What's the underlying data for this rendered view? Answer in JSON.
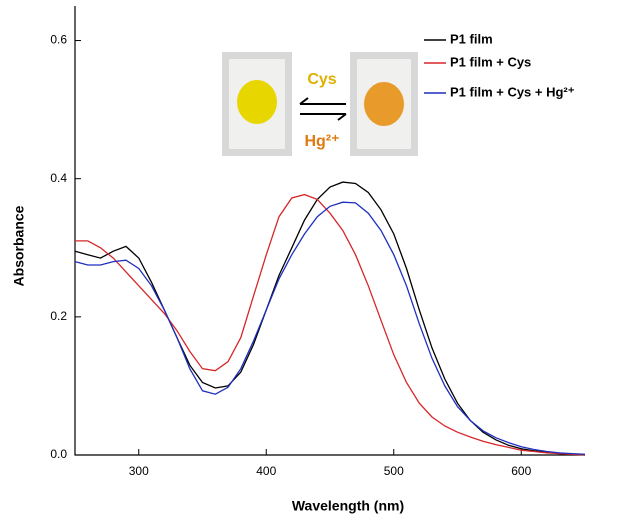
{
  "chart_data": {
    "type": "line",
    "x_label": "Wavelength (nm)",
    "y_label": "Absorbance",
    "x": [
      250,
      260,
      270,
      280,
      290,
      300,
      310,
      320,
      330,
      340,
      350,
      360,
      370,
      380,
      390,
      400,
      410,
      420,
      430,
      440,
      450,
      460,
      470,
      480,
      490,
      500,
      510,
      520,
      530,
      540,
      550,
      560,
      570,
      580,
      590,
      600,
      610,
      620,
      630,
      640,
      650
    ],
    "series": [
      {
        "name": "P1 film",
        "color": "#000000",
        "values": [
          0.295,
          0.29,
          0.285,
          0.295,
          0.302,
          0.285,
          0.25,
          0.21,
          0.17,
          0.13,
          0.105,
          0.097,
          0.1,
          0.12,
          0.16,
          0.21,
          0.26,
          0.3,
          0.34,
          0.37,
          0.388,
          0.395,
          0.393,
          0.38,
          0.355,
          0.32,
          0.27,
          0.21,
          0.155,
          0.11,
          0.075,
          0.05,
          0.033,
          0.022,
          0.014,
          0.009,
          0.006,
          0.004,
          0.002,
          0.001,
          0
        ]
      },
      {
        "name": "P1 film + Cys",
        "color": "#d62728",
        "values": [
          0.31,
          0.31,
          0.3,
          0.285,
          0.265,
          0.245,
          0.225,
          0.205,
          0.18,
          0.15,
          0.125,
          0.122,
          0.135,
          0.17,
          0.23,
          0.29,
          0.345,
          0.372,
          0.377,
          0.37,
          0.35,
          0.325,
          0.29,
          0.245,
          0.195,
          0.145,
          0.105,
          0.075,
          0.055,
          0.042,
          0.033,
          0.026,
          0.02,
          0.015,
          0.011,
          0.007,
          0.005,
          0.003,
          0.002,
          0.001,
          0
        ]
      },
      {
        "name": "P1 film + Cys + Hg²⁺",
        "color": "#1f2fbf",
        "values": [
          0.28,
          0.275,
          0.275,
          0.28,
          0.282,
          0.27,
          0.245,
          0.21,
          0.17,
          0.125,
          0.093,
          0.088,
          0.098,
          0.125,
          0.165,
          0.21,
          0.255,
          0.29,
          0.32,
          0.345,
          0.36,
          0.366,
          0.365,
          0.35,
          0.325,
          0.29,
          0.245,
          0.19,
          0.14,
          0.1,
          0.07,
          0.05,
          0.035,
          0.025,
          0.018,
          0.012,
          0.008,
          0.005,
          0.003,
          0.002,
          0.001
        ]
      }
    ],
    "xlim": [
      250,
      650
    ],
    "ylim": [
      0,
      0.65
    ],
    "xticks": [
      300,
      400,
      500,
      600
    ],
    "yticks": [
      {
        "value": 0,
        "label": "0.0"
      },
      0.2,
      0.4,
      0.6
    ],
    "legend": "upper right",
    "annotations": [
      "Cys",
      "Hg²⁺"
    ]
  }
}
